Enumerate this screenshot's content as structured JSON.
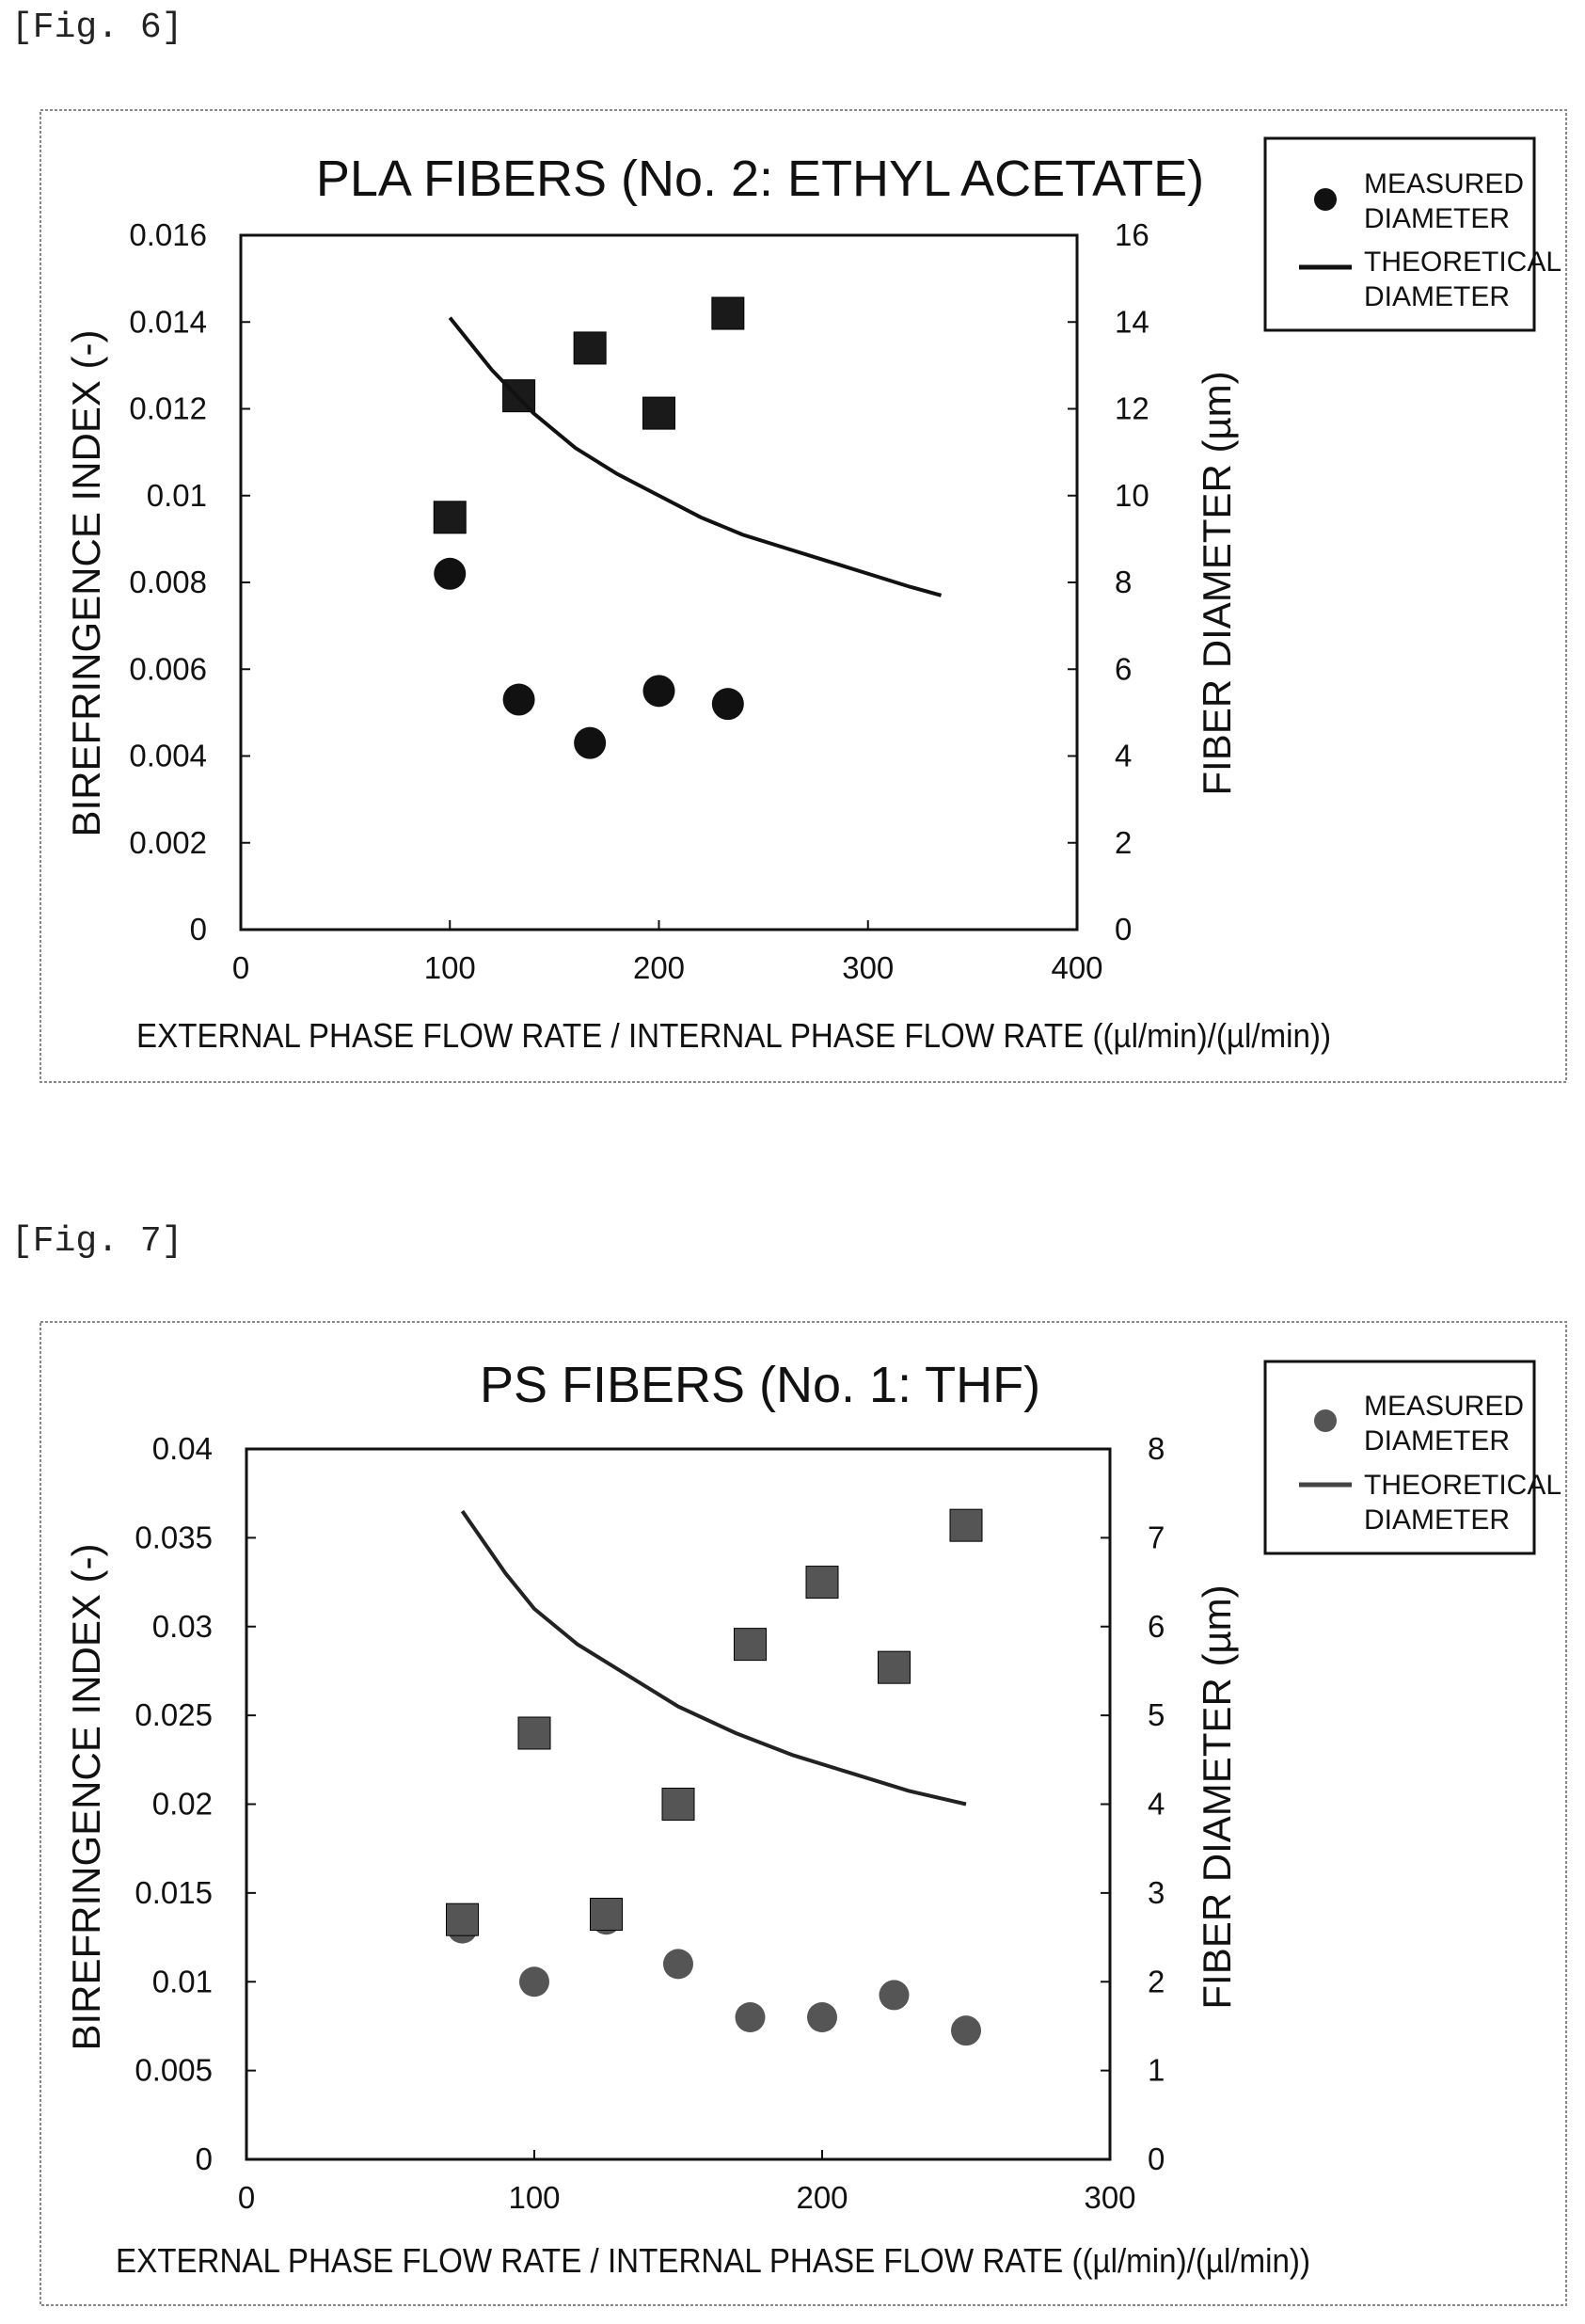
{
  "figures": [
    {
      "label": "[Fig. 6]"
    },
    {
      "label": "[Fig. 7]"
    }
  ],
  "chart_data": [
    {
      "type": "scatter",
      "title": "PLA FIBERS (No. 2: ETHYL ACETATE)",
      "xlabel": "EXTERNAL PHASE FLOW RATE / INTERNAL PHASE FLOW RATE ((µl/min)/(µl/min))",
      "ylabel": "BIREFRINGENCE INDEX (-)",
      "y2label": "FIBER DIAMETER (µm)",
      "xlim": [
        0,
        400
      ],
      "ylim": [
        0,
        0.016
      ],
      "y2lim": [
        0,
        16
      ],
      "xticks": [
        "0",
        "100",
        "200",
        "300",
        "400"
      ],
      "yticks": [
        "0",
        "0.002",
        "0.004",
        "0.006",
        "0.008",
        "0.01",
        "0.012",
        "0.014",
        "0.016"
      ],
      "y2ticks": [
        "0",
        "2",
        "4",
        "6",
        "8",
        "10",
        "12",
        "14",
        "16"
      ],
      "grid": false,
      "legend": {
        "placement": "top-right",
        "entries": [
          {
            "line1": "MEASURED",
            "line2": "DIAMETER",
            "marker": "circle"
          },
          {
            "line1": "THEORETICAL",
            "line2": "DIAMETER",
            "marker": "line"
          }
        ]
      },
      "series": [
        {
          "name": "MEASURED DIAMETER",
          "marker": "circle",
          "axis": "y2",
          "x": [
            100,
            133,
            167,
            200,
            233
          ],
          "y": [
            8.2,
            5.3,
            4.3,
            5.5,
            5.2
          ]
        },
        {
          "marker": "square",
          "axis": "y",
          "x": [
            100,
            133,
            167,
            200,
            233
          ],
          "y": [
            0.0095,
            0.0123,
            0.0134,
            0.0119,
            0.0142
          ]
        },
        {
          "name": "THEORETICAL DIAMETER",
          "marker": "line",
          "axis": "y2",
          "x": [
            100,
            120,
            140,
            160,
            180,
            200,
            220,
            240,
            260,
            280,
            300,
            320,
            335
          ],
          "y": [
            14.1,
            12.9,
            11.9,
            11.1,
            10.5,
            10.0,
            9.5,
            9.1,
            8.8,
            8.5,
            8.2,
            7.9,
            7.7
          ]
        }
      ],
      "colors": {
        "marker": "#111111",
        "square": "#1a1a1a"
      }
    },
    {
      "type": "scatter",
      "title": "PS FIBERS (No. 1: THF)",
      "xlabel": "EXTERNAL PHASE FLOW RATE / INTERNAL PHASE FLOW RATE ((µl/min)/(µl/min))",
      "ylabel": "BIREFRINGENCE INDEX (-)",
      "y2label": "FIBER DIAMETER (µm)",
      "xlim": [
        0,
        300
      ],
      "ylim": [
        0,
        0.04
      ],
      "y2lim": [
        0,
        8
      ],
      "xticks": [
        "0",
        "100",
        "200",
        "300"
      ],
      "yticks": [
        "0",
        "0.005",
        "0.01",
        "0.015",
        "0.02",
        "0.025",
        "0.03",
        "0.035",
        "0.04"
      ],
      "y2ticks": [
        "0",
        "1",
        "2",
        "3",
        "4",
        "5",
        "6",
        "7",
        "8"
      ],
      "grid": false,
      "legend": {
        "placement": "top-right",
        "entries": [
          {
            "line1": "MEASURED",
            "line2": "DIAMETER",
            "marker": "circle"
          },
          {
            "line1": "THEORETICAL",
            "line2": "DIAMETER",
            "marker": "line"
          }
        ]
      },
      "series": [
        {
          "name": "MEASURED DIAMETER",
          "marker": "circle",
          "axis": "y2",
          "x": [
            75,
            100,
            125,
            150,
            175,
            200,
            225,
            250
          ],
          "y": [
            2.6,
            2.0,
            2.7,
            2.2,
            1.6,
            1.6,
            1.85,
            1.45
          ]
        },
        {
          "marker": "square",
          "axis": "y",
          "x": [
            75,
            100,
            125,
            150,
            175,
            200,
            225,
            250
          ],
          "y": [
            0.0135,
            0.024,
            0.0138,
            0.02,
            0.029,
            0.0325,
            0.0277,
            0.0357
          ]
        },
        {
          "name": "THEORETICAL DIAMETER",
          "marker": "line",
          "axis": "y2",
          "x": [
            75,
            90,
            100,
            115,
            130,
            150,
            170,
            190,
            210,
            230,
            250
          ],
          "y": [
            7.3,
            6.6,
            6.2,
            5.8,
            5.5,
            5.1,
            4.8,
            4.55,
            4.35,
            4.15,
            4.0
          ]
        }
      ],
      "colors": {
        "marker": "#555555",
        "square": "#555555"
      }
    }
  ]
}
